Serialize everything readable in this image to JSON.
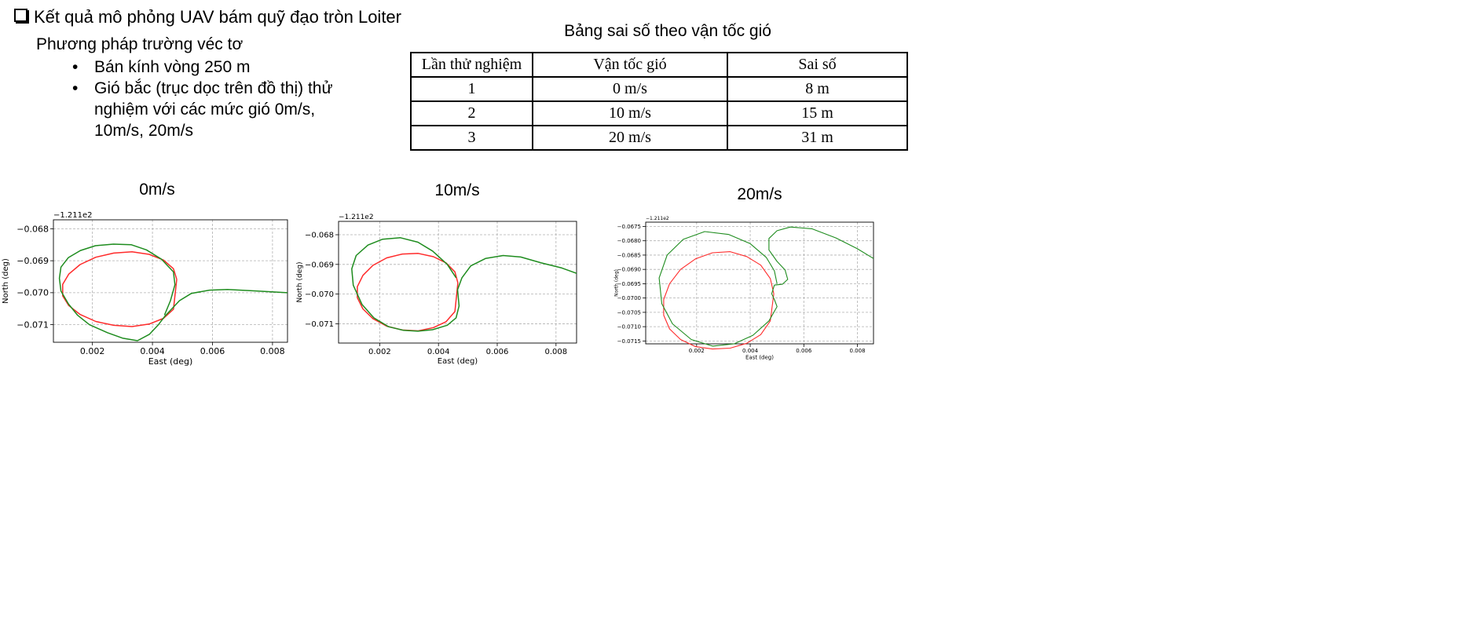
{
  "slide": {
    "heading": "Kết quả mô phỏng UAV bám quỹ đạo tròn Loiter",
    "subheading": "Phương pháp trường véc tơ",
    "bullets": [
      "Bán kính vòng 250 m",
      "Gió bắc (trục dọc trên đồ thị) thử nghiệm với các mức gió  0m/s, 10m/s, 20m/s"
    ]
  },
  "table": {
    "title": "Bảng sai số theo vận tốc gió",
    "headers": [
      "Lần thử nghiệm",
      "Vận tốc gió",
      "Sai số"
    ],
    "rows": [
      [
        "1",
        "0 m/s",
        "8 m"
      ],
      [
        "2",
        "10 m/s",
        "15 m"
      ],
      [
        "3",
        "20 m/s",
        "31 m"
      ]
    ]
  },
  "colors": {
    "reference": "#ff2a2a",
    "actual": "#1e8c1e",
    "grid": "#b0b0b0"
  },
  "chart_data": [
    {
      "type": "line",
      "title": "0m/s",
      "xlabel": "East (deg)",
      "ylabel": "North (deg)",
      "offset_label": "−1.211e2",
      "xlim": [
        0.0007,
        0.0085
      ],
      "ylim": [
        -0.07155,
        -0.06772
      ],
      "xticks": [
        0.002,
        0.004,
        0.006,
        0.008
      ],
      "xtick_labels": [
        "0.002",
        "0.004",
        "0.006",
        "0.008"
      ],
      "yticks": [
        -0.068,
        -0.069,
        -0.07,
        -0.071
      ],
      "ytick_labels": [
        "−0.068",
        "−0.069",
        "−0.070",
        "−0.071"
      ],
      "grid": true,
      "series": [
        {
          "role": "reference",
          "x": [
            0.00481,
            0.0047,
            0.00437,
            0.00389,
            0.00332,
            0.00271,
            0.00211,
            0.00159,
            0.00121,
            0.00101,
            0.00101,
            0.00121,
            0.00159,
            0.00211,
            0.00271,
            0.00332,
            0.00389,
            0.00437,
            0.0047,
            0.00481
          ],
          "y": [
            -0.06958,
            -0.06925,
            -0.06898,
            -0.0688,
            -0.06872,
            -0.06876,
            -0.06889,
            -0.06912,
            -0.06942,
            -0.06974,
            -0.0701,
            -0.0704,
            -0.07068,
            -0.0709,
            -0.07102,
            -0.07106,
            -0.07098,
            -0.0708,
            -0.07052,
            -0.06958
          ]
        },
        {
          "role": "actual",
          "x": [
            0.0085,
            0.0075,
            0.0065,
            0.0059,
            0.0053,
            0.0049,
            0.0046,
            0.0044,
            0.0042,
            0.0039,
            0.0035,
            0.003,
            0.0025,
            0.0019,
            0.0015,
            0.0012,
            0.00095,
            0.0009,
            0.00095,
            0.0012,
            0.0016,
            0.0021,
            0.0027,
            0.0033,
            0.0038,
            0.0043,
            0.0047,
            0.00475,
            0.0046,
            0.0044
          ],
          "y": [
            -0.07,
            -0.06995,
            -0.0699,
            -0.06992,
            -0.07002,
            -0.07025,
            -0.07055,
            -0.07075,
            -0.071,
            -0.0713,
            -0.0715,
            -0.07142,
            -0.07125,
            -0.071,
            -0.0707,
            -0.07035,
            -0.06995,
            -0.06955,
            -0.0692,
            -0.0689,
            -0.06868,
            -0.06853,
            -0.06848,
            -0.0685,
            -0.06866,
            -0.06895,
            -0.06935,
            -0.06975,
            -0.07025,
            -0.0707
          ]
        }
      ]
    },
    {
      "type": "line",
      "title": "10m/s",
      "xlabel": "East (deg)",
      "ylabel": "North (deg)",
      "offset_label": "−1.211e2",
      "xlim": [
        0.0006,
        0.0087
      ],
      "ylim": [
        -0.07165,
        -0.06755
      ],
      "xticks": [
        0.002,
        0.004,
        0.006,
        0.008
      ],
      "xtick_labels": [
        "0.002",
        "0.004",
        "0.006",
        "0.008"
      ],
      "yticks": [
        -0.068,
        -0.069,
        -0.07,
        -0.071
      ],
      "ytick_labels": [
        "−0.068",
        "−0.069",
        "−0.070",
        "−0.071"
      ],
      "grid": true,
      "series": [
        {
          "role": "reference",
          "x": [
            0.00466,
            0.00456,
            0.00426,
            0.00383,
            0.00331,
            0.00277,
            0.00224,
            0.00177,
            0.00143,
            0.00124,
            0.00124,
            0.00143,
            0.00177,
            0.00224,
            0.00277,
            0.00331,
            0.00383,
            0.00426,
            0.00456,
            0.00466
          ],
          "y": [
            -0.06962,
            -0.06925,
            -0.06895,
            -0.06874,
            -0.06863,
            -0.06865,
            -0.06878,
            -0.06903,
            -0.06937,
            -0.06975,
            -0.07012,
            -0.0705,
            -0.07083,
            -0.07108,
            -0.07121,
            -0.07124,
            -0.07113,
            -0.07093,
            -0.07059,
            -0.06962
          ]
        },
        {
          "role": "actual",
          "x": [
            0.0087,
            0.0082,
            0.0075,
            0.0068,
            0.0062,
            0.0056,
            0.0051,
            0.0048,
            0.00465,
            0.0047,
            0.0046,
            0.0043,
            0.0038,
            0.0033,
            0.0028,
            0.0023,
            0.0018,
            0.0014,
            0.0011,
            0.00105,
            0.0012,
            0.0016,
            0.0021,
            0.0027,
            0.0033,
            0.0038,
            0.0043,
            0.0046
          ],
          "y": [
            -0.0693,
            -0.06912,
            -0.06895,
            -0.06875,
            -0.0687,
            -0.0688,
            -0.06905,
            -0.06945,
            -0.06985,
            -0.0704,
            -0.0708,
            -0.07105,
            -0.0712,
            -0.07125,
            -0.07122,
            -0.0711,
            -0.0708,
            -0.07035,
            -0.0697,
            -0.06915,
            -0.0687,
            -0.06835,
            -0.06815,
            -0.0681,
            -0.06825,
            -0.06855,
            -0.069,
            -0.06945
          ]
        }
      ]
    },
    {
      "type": "line",
      "title": "20m/s",
      "xlabel": "East (deg)",
      "ylabel": "North (deg)",
      "offset_label": "−1.211e2",
      "xlim": [
        0.0001,
        0.0086
      ],
      "ylim": [
        -0.0716,
        -0.06735
      ],
      "xticks": [
        0.002,
        0.004,
        0.006,
        0.008
      ],
      "xtick_labels": [
        "0.002",
        "0.004",
        "0.006",
        "0.008"
      ],
      "yticks": [
        -0.0675,
        -0.068,
        -0.0685,
        -0.069,
        -0.0695,
        -0.07,
        -0.0705,
        -0.071,
        -0.0715
      ],
      "ytick_labels": [
        "−0.0675",
        "−0.0680",
        "−0.0685",
        "−0.0690",
        "−0.0695",
        "−0.0700",
        "−0.0705",
        "−0.0710",
        "−0.0715"
      ],
      "grid": true,
      "series": [
        {
          "role": "reference",
          "x": [
            0.00488,
            0.00475,
            0.00439,
            0.00387,
            0.00325,
            0.00259,
            0.00196,
            0.0014,
            0.00099,
            0.00077,
            0.00077,
            0.00099,
            0.0014,
            0.00196,
            0.00259,
            0.00325,
            0.00387,
            0.00439,
            0.00475,
            0.00488
          ],
          "y": [
            -0.06985,
            -0.06932,
            -0.06885,
            -0.06855,
            -0.06838,
            -0.06842,
            -0.06863,
            -0.069,
            -0.0695,
            -0.07005,
            -0.0706,
            -0.07108,
            -0.07145,
            -0.0717,
            -0.07178,
            -0.07175,
            -0.07158,
            -0.07128,
            -0.0708,
            -0.06985
          ]
        },
        {
          "role": "actual",
          "x": [
            0.0086,
            0.008,
            0.0072,
            0.0063,
            0.0055,
            0.005,
            0.0047,
            0.0047,
            0.005,
            0.0053,
            0.0054,
            0.0052,
            0.0049,
            0.0048,
            0.0049,
            0.005,
            0.0047,
            0.0041,
            0.0034,
            0.0026,
            0.0018,
            0.0011,
            0.0007,
            0.0006,
            0.0009,
            0.0015,
            0.0023,
            0.0032,
            0.004,
            0.0046,
            0.0049,
            0.005
          ],
          "y": [
            -0.06862,
            -0.06828,
            -0.0679,
            -0.06758,
            -0.06752,
            -0.06765,
            -0.06792,
            -0.06832,
            -0.06872,
            -0.06902,
            -0.06935,
            -0.06952,
            -0.06955,
            -0.06985,
            -0.07005,
            -0.0703,
            -0.0708,
            -0.0713,
            -0.0716,
            -0.07168,
            -0.07145,
            -0.0709,
            -0.0702,
            -0.0693,
            -0.0685,
            -0.06795,
            -0.06768,
            -0.06778,
            -0.0681,
            -0.06858,
            -0.06905,
            -0.0695
          ]
        }
      ]
    }
  ]
}
